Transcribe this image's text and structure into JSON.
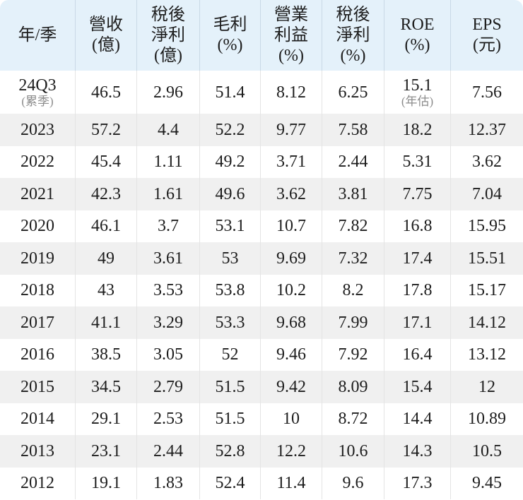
{
  "colors": {
    "header_bg": "#e4f1fa",
    "header_divider": "#c9d9e6",
    "body_divider": "#e4e4e4",
    "row_alt_bg": "#f0f0f0",
    "row_bg": "#ffffff",
    "text_color": "#1d1d1d",
    "note_color": "#8c8c8c"
  },
  "table": {
    "columns": [
      {
        "id": "year",
        "lines": [
          "年/季"
        ]
      },
      {
        "id": "revenue",
        "lines": [
          "營收",
          "(億)"
        ]
      },
      {
        "id": "net-income",
        "lines": [
          "稅後",
          "淨利",
          "(億)"
        ]
      },
      {
        "id": "gross-margin",
        "lines": [
          "毛利",
          "(%)"
        ]
      },
      {
        "id": "operating-margin",
        "lines": [
          "營業",
          "利益",
          "(%)"
        ]
      },
      {
        "id": "net-margin",
        "lines": [
          "稅後",
          "淨利",
          "(%)"
        ]
      },
      {
        "id": "roe",
        "lines": [
          "ROE",
          "(%)"
        ]
      },
      {
        "id": "eps",
        "lines": [
          "EPS",
          "(元)"
        ]
      }
    ],
    "rows": [
      {
        "cells": [
          "24Q3",
          "46.5",
          "2.96",
          "51.4",
          "8.12",
          "6.25",
          "15.1",
          "7.56"
        ],
        "cell_notes": [
          "(累季)",
          "",
          "",
          "",
          "",
          "",
          "(年估)",
          ""
        ]
      },
      {
        "cells": [
          "2023",
          "57.2",
          "4.4",
          "52.2",
          "9.77",
          "7.58",
          "18.2",
          "12.37"
        ]
      },
      {
        "cells": [
          "2022",
          "45.4",
          "1.11",
          "49.2",
          "3.71",
          "2.44",
          "5.31",
          "3.62"
        ]
      },
      {
        "cells": [
          "2021",
          "42.3",
          "1.61",
          "49.6",
          "3.62",
          "3.81",
          "7.75",
          "7.04"
        ]
      },
      {
        "cells": [
          "2020",
          "46.1",
          "3.7",
          "53.1",
          "10.7",
          "7.82",
          "16.8",
          "15.95"
        ]
      },
      {
        "cells": [
          "2019",
          "49",
          "3.61",
          "53",
          "9.69",
          "7.32",
          "17.4",
          "15.51"
        ]
      },
      {
        "cells": [
          "2018",
          "43",
          "3.53",
          "53.8",
          "10.2",
          "8.2",
          "17.8",
          "15.17"
        ]
      },
      {
        "cells": [
          "2017",
          "41.1",
          "3.29",
          "53.3",
          "9.68",
          "7.99",
          "17.1",
          "14.12"
        ]
      },
      {
        "cells": [
          "2016",
          "38.5",
          "3.05",
          "52",
          "9.46",
          "7.92",
          "16.4",
          "13.12"
        ]
      },
      {
        "cells": [
          "2015",
          "34.5",
          "2.79",
          "51.5",
          "9.42",
          "8.09",
          "15.4",
          "12"
        ]
      },
      {
        "cells": [
          "2014",
          "29.1",
          "2.53",
          "51.5",
          "10",
          "8.72",
          "14.4",
          "10.89"
        ]
      },
      {
        "cells": [
          "2013",
          "23.1",
          "2.44",
          "52.8",
          "12.2",
          "10.6",
          "14.3",
          "10.5"
        ]
      },
      {
        "cells": [
          "2012",
          "19.1",
          "1.83",
          "52.4",
          "11.4",
          "9.6",
          "17.3",
          "9.45"
        ]
      }
    ]
  }
}
